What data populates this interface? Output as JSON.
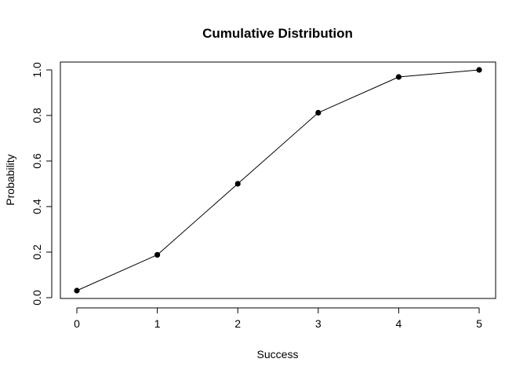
{
  "chart_data": {
    "type": "line",
    "title": "Cumulative Distribution",
    "xlabel": "Success",
    "ylabel": "Probability",
    "x": [
      0,
      1,
      2,
      3,
      4,
      5
    ],
    "series": [
      {
        "values": [
          0.031,
          0.188,
          0.5,
          0.812,
          0.969,
          1.0
        ]
      }
    ],
    "xlim": [
      0,
      5
    ],
    "ylim": [
      0,
      1
    ],
    "xticks": [
      "0",
      "1",
      "2",
      "3",
      "4",
      "5"
    ],
    "yticks": [
      "0.0",
      "0.2",
      "0.4",
      "0.6",
      "0.8",
      "1.0"
    ],
    "xtick_values": [
      0,
      1,
      2,
      3,
      4,
      5
    ],
    "ytick_values": [
      0,
      0.2,
      0.4,
      0.6,
      0.8,
      1.0
    ],
    "grid": false,
    "markers": "filled-circle",
    "line_color": "#000000",
    "marker_color": "#000000"
  }
}
